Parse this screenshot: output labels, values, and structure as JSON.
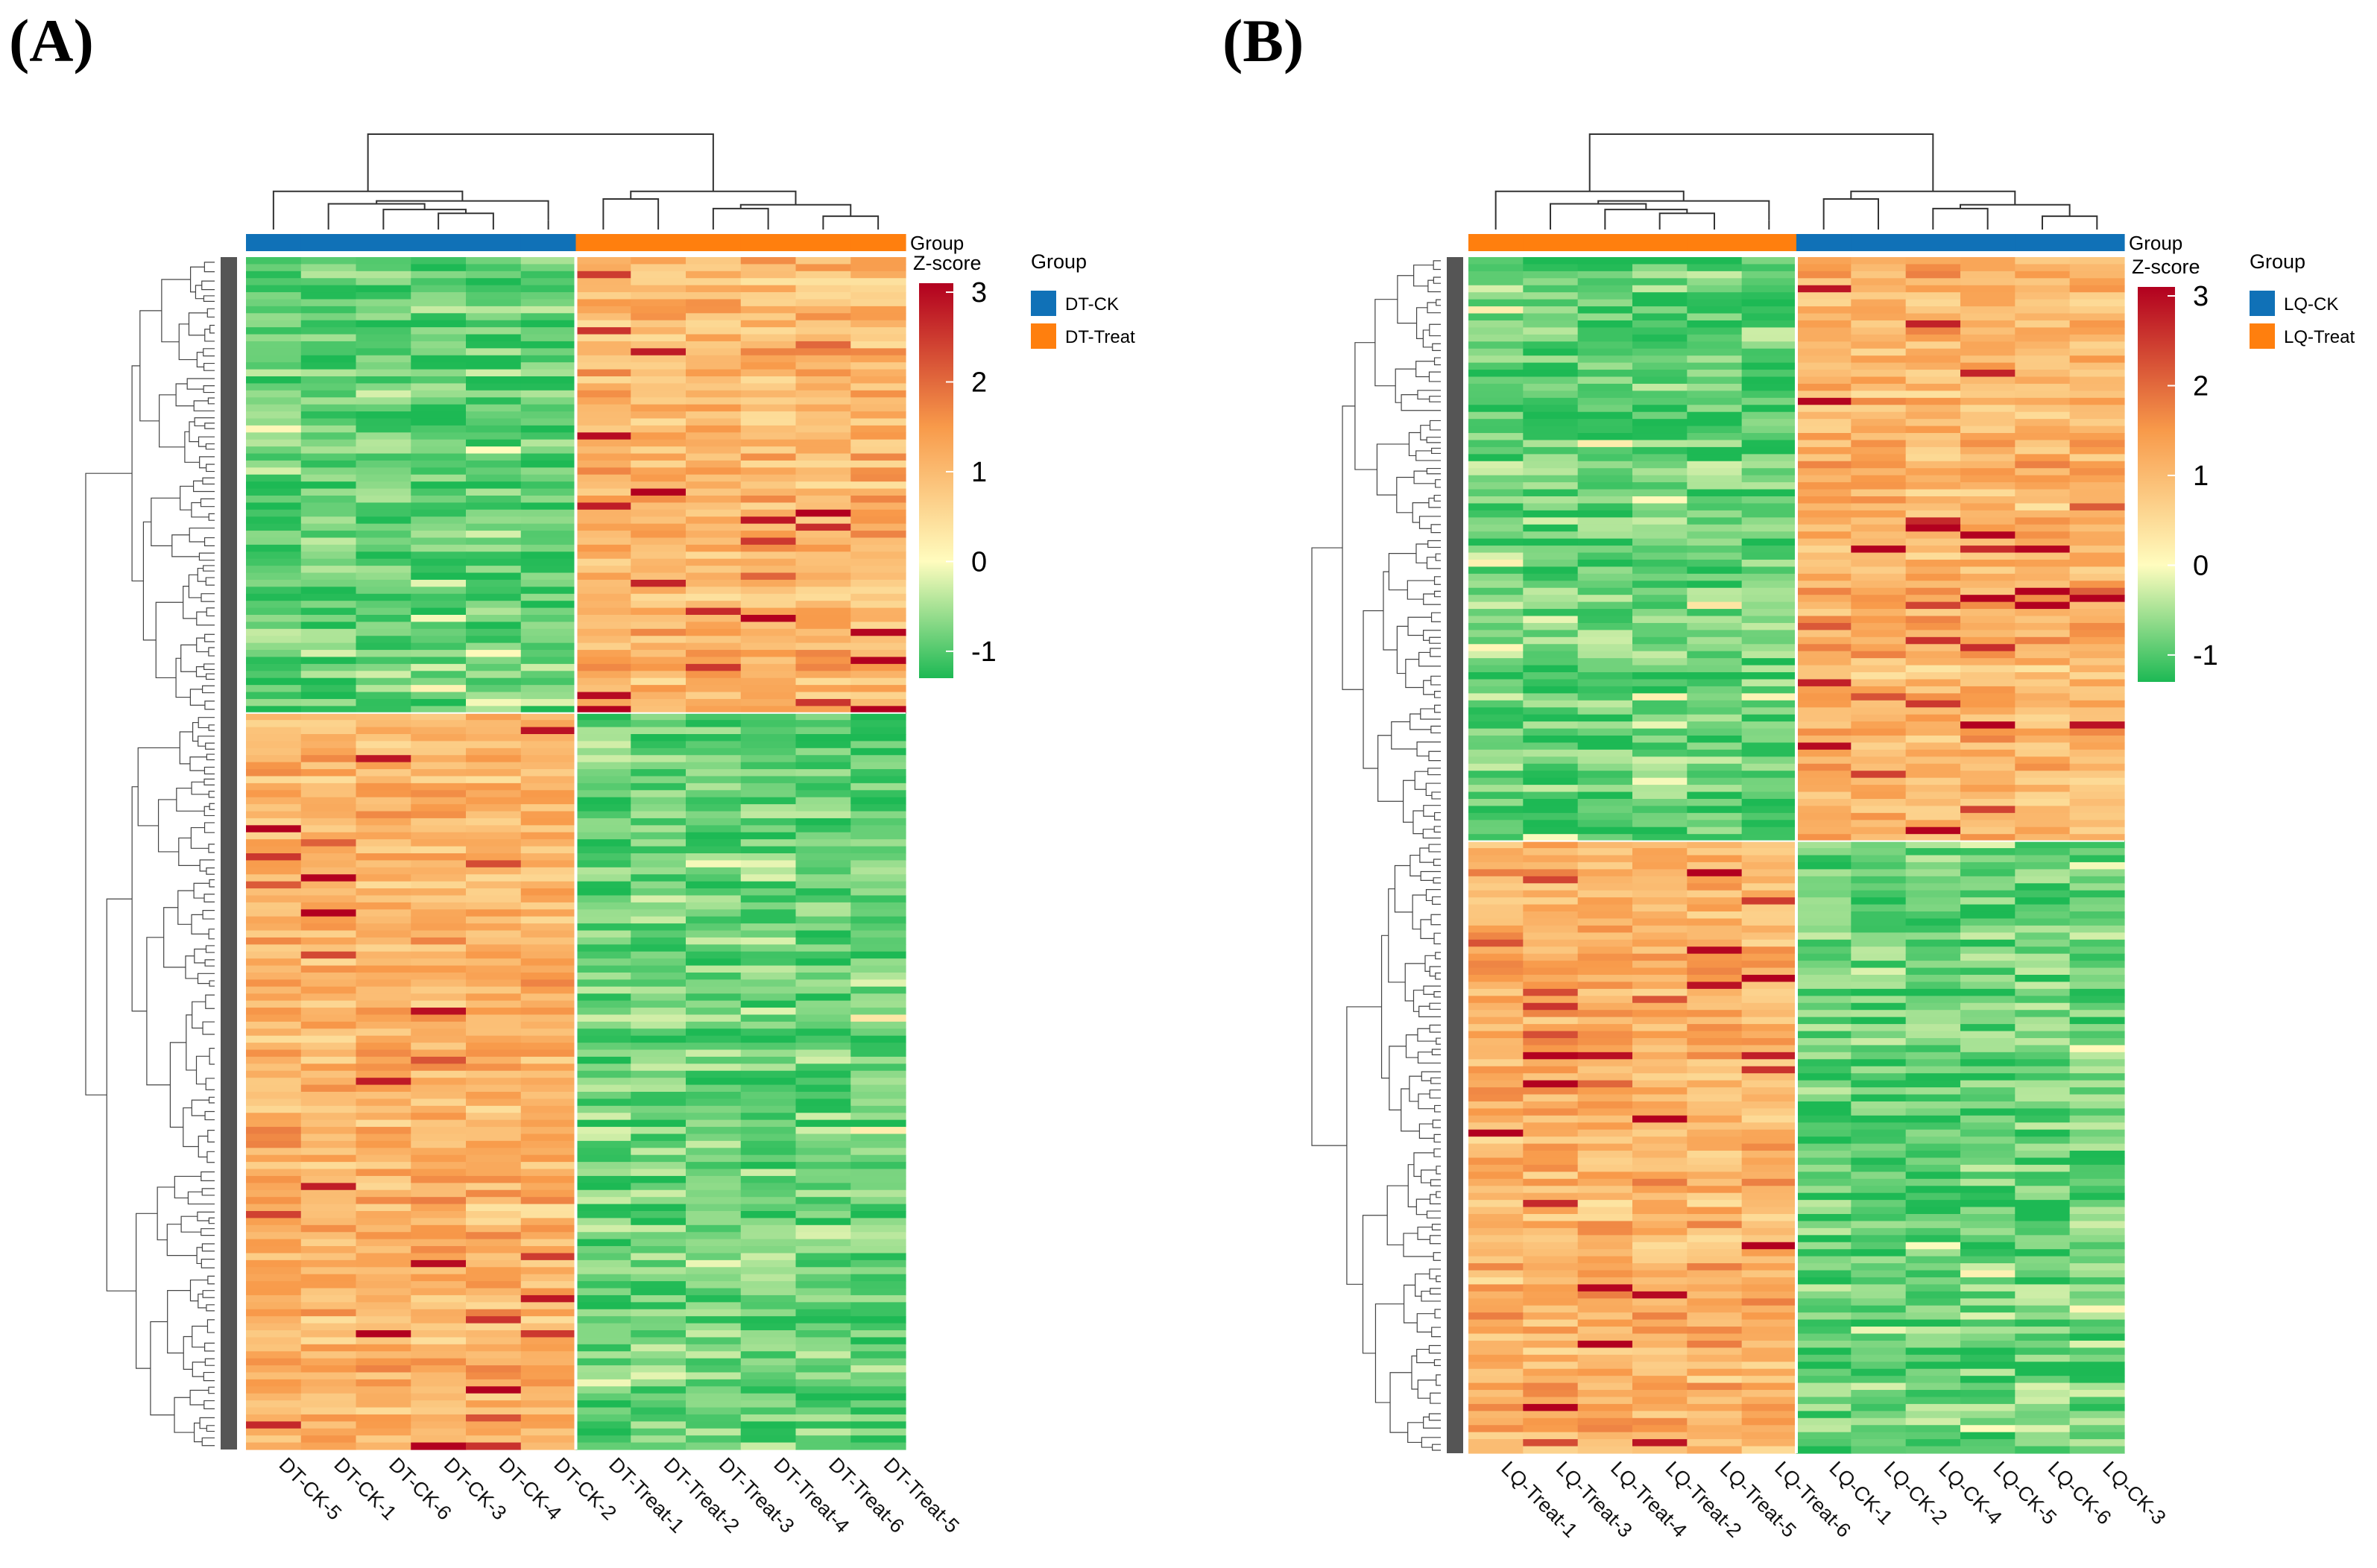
{
  "panels": [
    {
      "label": "(A)",
      "legend_title": "Group",
      "bar_label": "Group",
      "zscore_label": "Z-score",
      "groups": [
        {
          "name": "DT-CK",
          "color": "#1071B7"
        },
        {
          "name": "DT-Treat",
          "color": "#FF7F0E"
        }
      ],
      "group_bar": [
        "DT-CK",
        "DT-CK",
        "DT-CK",
        "DT-CK",
        "DT-CK",
        "DT-CK",
        "DT-Treat",
        "DT-Treat",
        "DT-Treat",
        "DT-Treat",
        "DT-Treat",
        "DT-Treat"
      ]
    },
    {
      "label": "(B)",
      "legend_title": "Group",
      "bar_label": "Group",
      "zscore_label": "Z-score",
      "groups": [
        {
          "name": "LQ-CK",
          "color": "#1071B7"
        },
        {
          "name": "LQ-Treat",
          "color": "#FF7F0E"
        }
      ],
      "group_bar": [
        "LQ-Treat",
        "LQ-Treat",
        "LQ-Treat",
        "LQ-Treat",
        "LQ-Treat",
        "LQ-Treat",
        "LQ-CK",
        "LQ-CK",
        "LQ-CK",
        "LQ-CK",
        "LQ-CK",
        "LQ-CK"
      ]
    }
  ],
  "chart_data": [
    {
      "type": "heatmap",
      "title": "(A)",
      "columns": [
        "DT-CK-5",
        "DT-CK-1",
        "DT-CK-6",
        "DT-CK-3",
        "DT-CK-4",
        "DT-CK-2",
        "DT-Treat-1",
        "DT-Treat-2",
        "DT-Treat-3",
        "DT-Treat-4",
        "DT-Treat-6",
        "DT-Treat-5"
      ],
      "colorbar": {
        "label": "Z-score",
        "ticks": [
          3,
          2,
          1,
          0,
          -1
        ],
        "range": [
          -1.3,
          3.1
        ],
        "colors": [
          "#1DB954",
          "#FFFCBE",
          "#F89A4A",
          "#B2001F"
        ]
      },
      "row_blocks": [
        {
          "rows_fraction": 0.38,
          "pattern": [
            -0.9,
            -0.9,
            -0.9,
            -0.9,
            -0.9,
            -0.9,
            1.1,
            1.1,
            1.1,
            1.1,
            1.1,
            1.1
          ]
        },
        {
          "rows_fraction": 0.62,
          "pattern": [
            1.1,
            1.1,
            1.1,
            1.1,
            1.1,
            1.1,
            -0.9,
            -0.9,
            -0.9,
            -0.9,
            -0.9,
            -0.9
          ]
        }
      ]
    },
    {
      "type": "heatmap",
      "title": "(B)",
      "columns": [
        "LQ-Treat-1",
        "LQ-Treat-3",
        "LQ-Treat-4",
        "LQ-Treat-2",
        "LQ-Treat-5",
        "LQ-Treat-6",
        "LQ-CK-1",
        "LQ-CK-2",
        "LQ-CK-4",
        "LQ-CK-5",
        "LQ-CK-6",
        "LQ-CK-3"
      ],
      "colorbar": {
        "label": "Z-score",
        "ticks": [
          3,
          2,
          1,
          0,
          -1
        ],
        "range": [
          -1.3,
          3.1
        ],
        "colors": [
          "#1DB954",
          "#FFFCBE",
          "#F89A4A",
          "#B2001F"
        ]
      },
      "row_blocks": [
        {
          "rows_fraction": 0.49,
          "pattern": [
            -0.9,
            -0.9,
            -0.9,
            -0.9,
            -0.9,
            -0.9,
            1.1,
            1.1,
            1.1,
            1.1,
            1.1,
            1.1
          ]
        },
        {
          "rows_fraction": 0.51,
          "pattern": [
            1.1,
            1.1,
            1.1,
            1.1,
            1.1,
            1.1,
            -0.9,
            -0.9,
            -0.9,
            -0.9,
            -0.9,
            -0.9
          ]
        }
      ]
    }
  ]
}
